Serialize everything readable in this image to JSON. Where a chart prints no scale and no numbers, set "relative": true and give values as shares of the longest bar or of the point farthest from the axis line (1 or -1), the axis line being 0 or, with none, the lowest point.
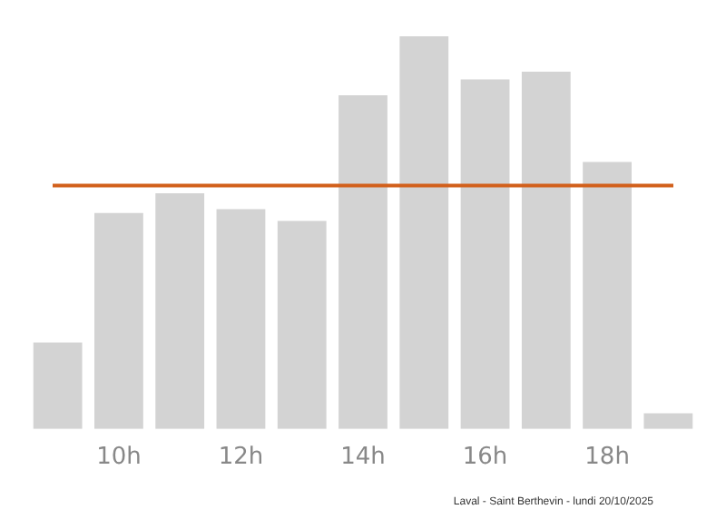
{
  "chart_data": {
    "type": "bar",
    "relative": true,
    "categories": [
      null,
      "10h",
      null,
      "12h",
      null,
      "14h",
      null,
      "16h",
      null,
      "18h",
      null
    ],
    "values": [
      0.22,
      0.55,
      0.6,
      0.56,
      0.53,
      0.85,
      1,
      0.89,
      0.91,
      0.68,
      0.04
    ],
    "color": "#d3d3d3",
    "ref_lines": [
      {
        "axis": "y",
        "value": 0.62,
        "color": "#d2601c"
      }
    ],
    "annotations": [
      "Laval - Saint Berthevin - lundi 20/10/2025"
    ],
    "grid": false,
    "legend": false
  }
}
